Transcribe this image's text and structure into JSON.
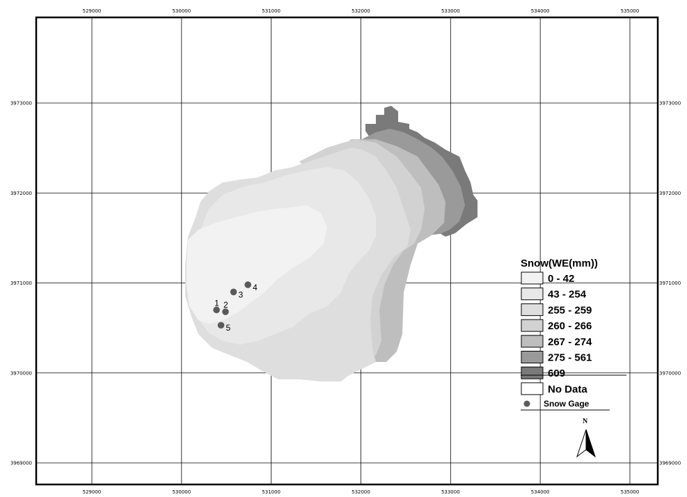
{
  "map": {
    "x_ticks": [
      "529000",
      "530000",
      "531000",
      "532000",
      "533000",
      "534000",
      "535000"
    ],
    "y_ticks": [
      "3973000",
      "3972000",
      "3971000",
      "3970000",
      "3969000"
    ],
    "y_ticks_right": [
      "3973000",
      "3972000",
      "3971000",
      "3970000",
      "3969000"
    ]
  },
  "legend": {
    "title": "Snow(WE(mm))",
    "classes": [
      {
        "label": "0 - 42",
        "color": "#f2f2f2"
      },
      {
        "label": "43 - 254",
        "color": "#e8e8e8"
      },
      {
        "label": "255 - 259",
        "color": "#dedede"
      },
      {
        "label": "260 - 266",
        "color": "#d2d2d2"
      },
      {
        "label": "267 - 274",
        "color": "#bebebe"
      },
      {
        "label": "275 - 561",
        "color": "#9a9a9a"
      },
      {
        "label": "609",
        "color": "#7a7a7a"
      },
      {
        "label": "No Data",
        "color": "#ffffff"
      }
    ],
    "gage_label": "Snow Gage",
    "gage_color": "#5a5a5a"
  },
  "gages": [
    {
      "label": "1",
      "easting": 530390,
      "northing": 3970700
    },
    {
      "label": "2",
      "easting": 530490,
      "northing": 3970680
    },
    {
      "label": "3",
      "easting": 530580,
      "northing": 3970900
    },
    {
      "label": "4",
      "easting": 530740,
      "northing": 3970980
    },
    {
      "label": "5",
      "easting": 530440,
      "northing": 3970530
    }
  ],
  "north_arrow": {
    "label": "N"
  }
}
